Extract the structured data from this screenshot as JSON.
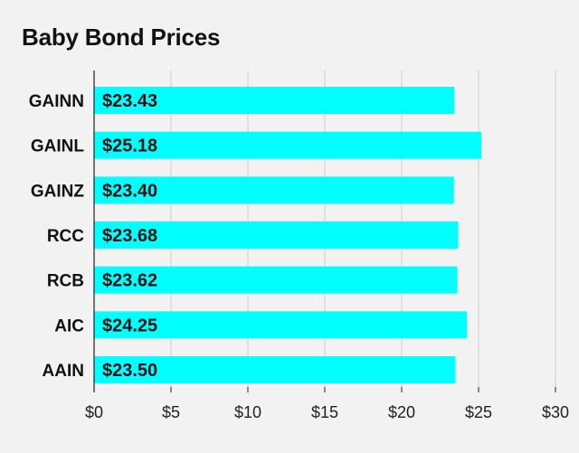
{
  "chart_data": {
    "type": "bar",
    "orientation": "horizontal",
    "title": "Baby Bond Prices",
    "xlabel": "",
    "ylabel": "",
    "categories": [
      "GAINN",
      "GAINL",
      "GAINZ",
      "RCC",
      "RCB",
      "AIC",
      "AAIN"
    ],
    "values": [
      23.43,
      25.18,
      23.4,
      23.68,
      23.62,
      24.25,
      23.5
    ],
    "value_labels": [
      "$23.43",
      "$25.18",
      "$23.40",
      "$23.68",
      "$23.62",
      "$24.25",
      "$23.50"
    ],
    "xlim": [
      0,
      30
    ],
    "xticks": [
      0,
      5,
      10,
      15,
      20,
      25,
      30
    ],
    "xtick_labels": [
      "$0",
      "$5",
      "$10",
      "$15",
      "$20",
      "$25",
      "$30"
    ],
    "grid": "vertical",
    "bar_color": "#00ffff",
    "background_color": "#f2f2f2"
  }
}
